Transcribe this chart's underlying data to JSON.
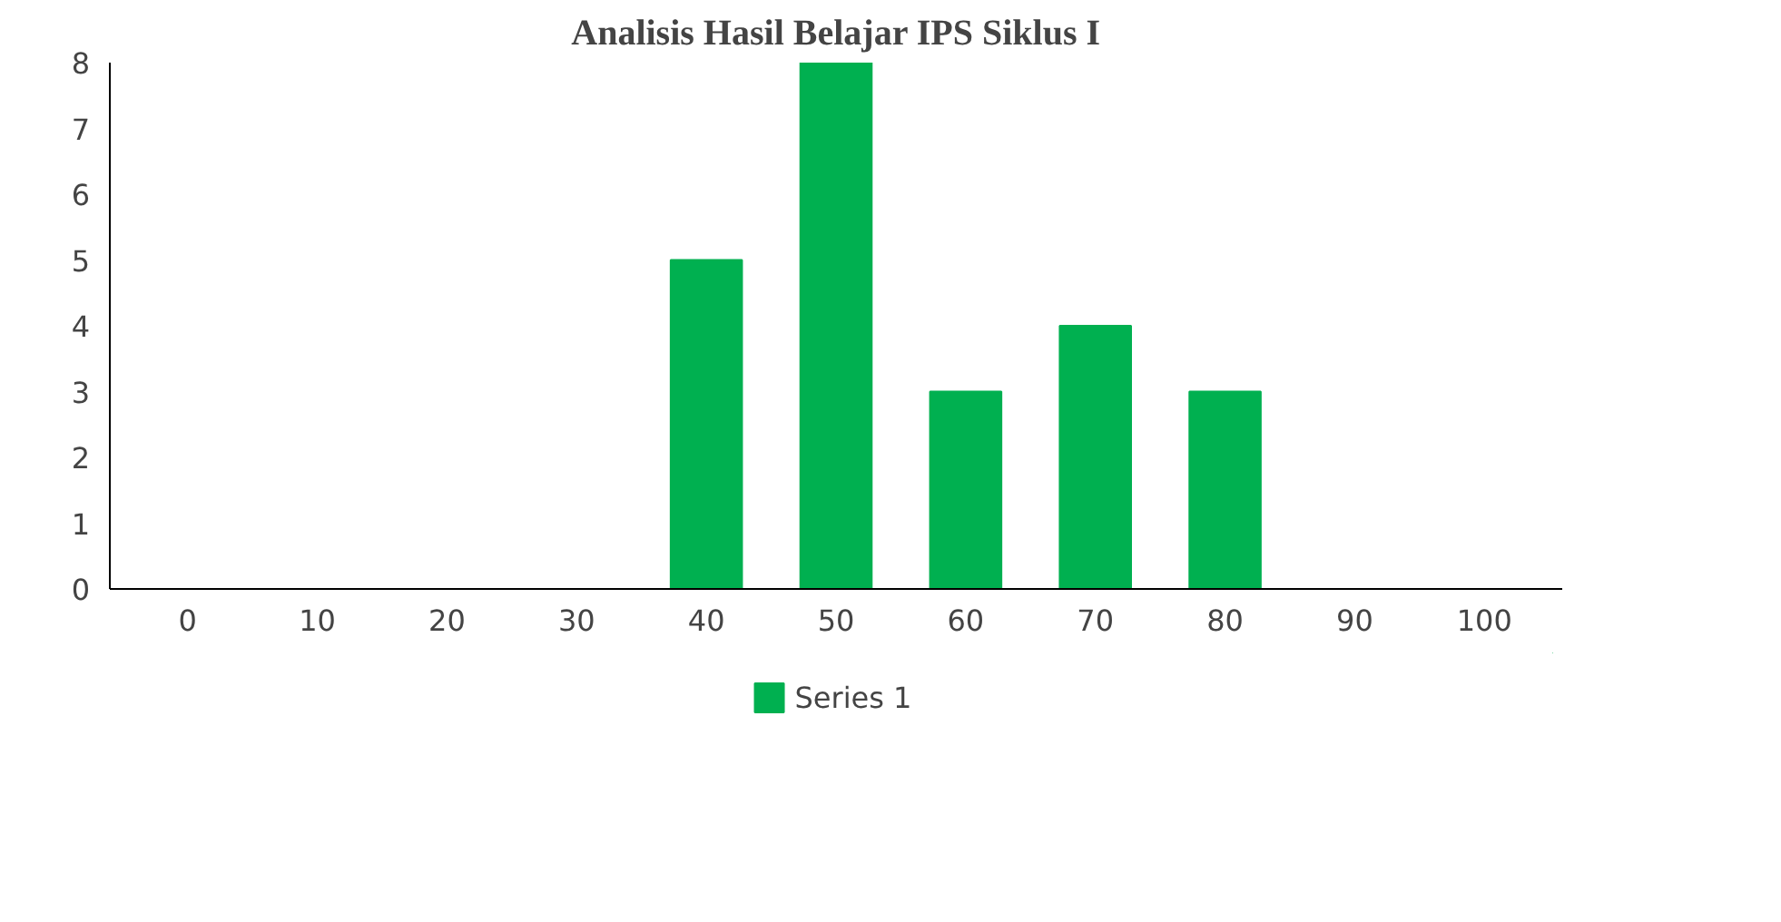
{
  "chart_data": {
    "type": "bar",
    "title": "Analisis Hasil Belajar IPS Siklus I",
    "categories": [
      "0",
      "10",
      "20",
      "30",
      "40",
      "50",
      "60",
      "70",
      "80",
      "90",
      "100"
    ],
    "series": [
      {
        "name": "Series 1",
        "color": "#00b050",
        "values": [
          0,
          0,
          0,
          0,
          5,
          8,
          3,
          4,
          3,
          0,
          0
        ]
      }
    ],
    "ylim": [
      0,
      8
    ],
    "yticks": [
      0,
      1,
      2,
      3,
      4,
      5,
      6,
      7,
      8
    ],
    "grid": false,
    "legend": "bottom"
  }
}
